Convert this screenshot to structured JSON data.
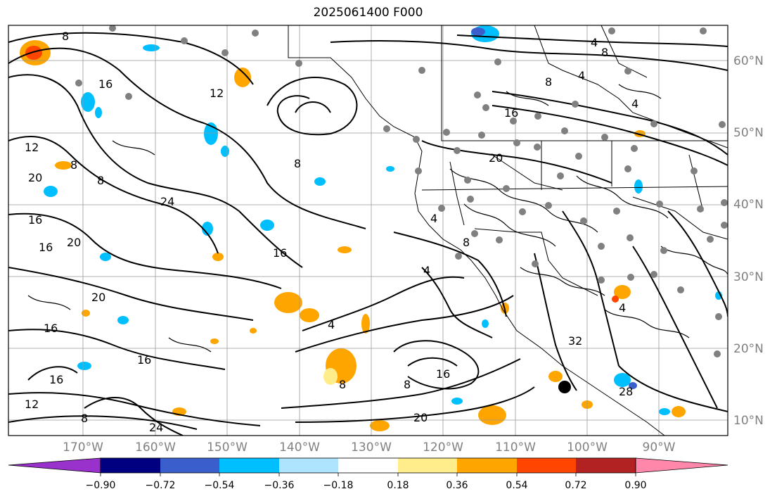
{
  "title": "2025061400 F000",
  "lat_labels": [
    "60°N",
    "50°N",
    "40°N",
    "30°N",
    "20°N",
    "10°N"
  ],
  "lon_labels": [
    "170°W",
    "160°W",
    "150°W",
    "140°W",
    "130°W",
    "120°W",
    "110°W",
    "100°W",
    "90°W"
  ],
  "contour_labels": [
    "4",
    "8",
    "12",
    "16",
    "20",
    "24",
    "28",
    "32"
  ],
  "colorbar": {
    "tick_labels": [
      "−0.90",
      "−0.72",
      "−0.54",
      "−0.36",
      "−0.18",
      "0.18",
      "0.36",
      "0.54",
      "0.72",
      "0.90"
    ],
    "colors": [
      "#9932cc",
      "#000080",
      "#3a5fcd",
      "#00bfff",
      "#afe4ff",
      "#ffffff",
      "#ffec8b",
      "#ffa500",
      "#ff4500",
      "#b22222",
      "#ff88aa"
    ]
  }
}
